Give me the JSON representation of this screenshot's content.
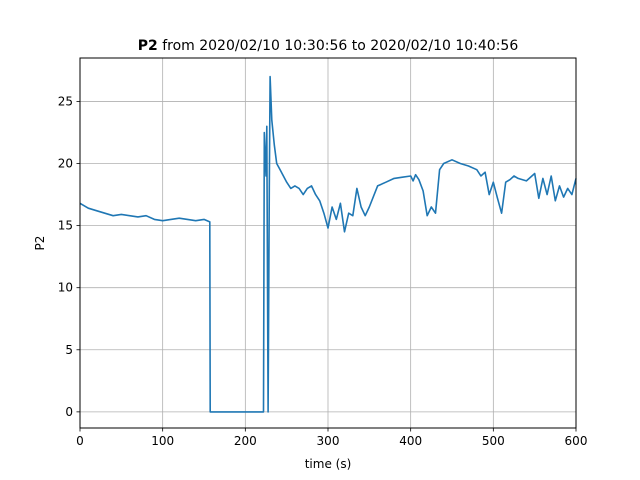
{
  "chart_data": {
    "type": "line",
    "title_bold": "P2",
    "title_rest": " from 2020/02/10 10:30:56 to 2020/02/10 10:40:56",
    "xlabel": "time (s)",
    "ylabel": "P2",
    "xlim": [
      0,
      600
    ],
    "ylim": [
      -1.3,
      28.5
    ],
    "x_ticks": [
      0,
      100,
      200,
      300,
      400,
      500,
      600
    ],
    "y_ticks": [
      0,
      5,
      10,
      15,
      20,
      25
    ],
    "grid": true,
    "line_color": "#1f77b4",
    "series": [
      {
        "x": [
          0,
          10,
          20,
          30,
          40,
          50,
          60,
          70,
          80,
          90,
          100,
          110,
          120,
          130,
          140,
          150,
          157,
          157.5,
          222,
          223,
          225,
          226,
          227.5,
          229,
          230,
          232,
          235,
          238,
          242,
          246,
          250,
          255,
          260,
          265,
          270,
          275,
          280,
          285,
          290,
          295,
          300,
          305,
          310,
          315,
          320,
          325,
          330,
          335,
          340,
          345,
          350,
          360,
          370,
          380,
          390,
          400,
          403,
          406,
          410,
          415,
          420,
          425,
          430,
          435,
          440,
          450,
          460,
          470,
          480,
          485,
          490,
          495,
          500,
          505,
          510,
          515,
          520,
          525,
          530,
          540,
          550,
          555,
          560,
          565,
          570,
          575,
          580,
          585,
          590,
          595,
          600
        ],
        "y": [
          16.8,
          16.4,
          16.2,
          16.0,
          15.8,
          15.9,
          15.8,
          15.7,
          15.8,
          15.5,
          15.4,
          15.5,
          15.6,
          15.5,
          15.4,
          15.5,
          15.3,
          0,
          0,
          22.5,
          19.0,
          23.0,
          0,
          18.0,
          27.0,
          23.5,
          21.5,
          20.0,
          19.5,
          19.0,
          18.5,
          18.0,
          18.2,
          18.0,
          17.5,
          18.0,
          18.2,
          17.5,
          17.0,
          16.0,
          14.8,
          16.5,
          15.5,
          16.8,
          14.5,
          16.0,
          15.8,
          18.0,
          16.5,
          15.8,
          16.5,
          18.2,
          18.5,
          18.8,
          18.9,
          19.0,
          18.6,
          19.1,
          18.7,
          17.8,
          15.8,
          16.5,
          16.0,
          19.5,
          20.0,
          20.3,
          20.0,
          19.8,
          19.5,
          19.0,
          19.3,
          17.5,
          18.5,
          17.2,
          16.0,
          18.5,
          18.7,
          19.0,
          18.8,
          18.6,
          19.2,
          17.2,
          18.8,
          17.5,
          19.0,
          17.0,
          18.2,
          17.3,
          18.0,
          17.5,
          18.8
        ]
      }
    ]
  }
}
